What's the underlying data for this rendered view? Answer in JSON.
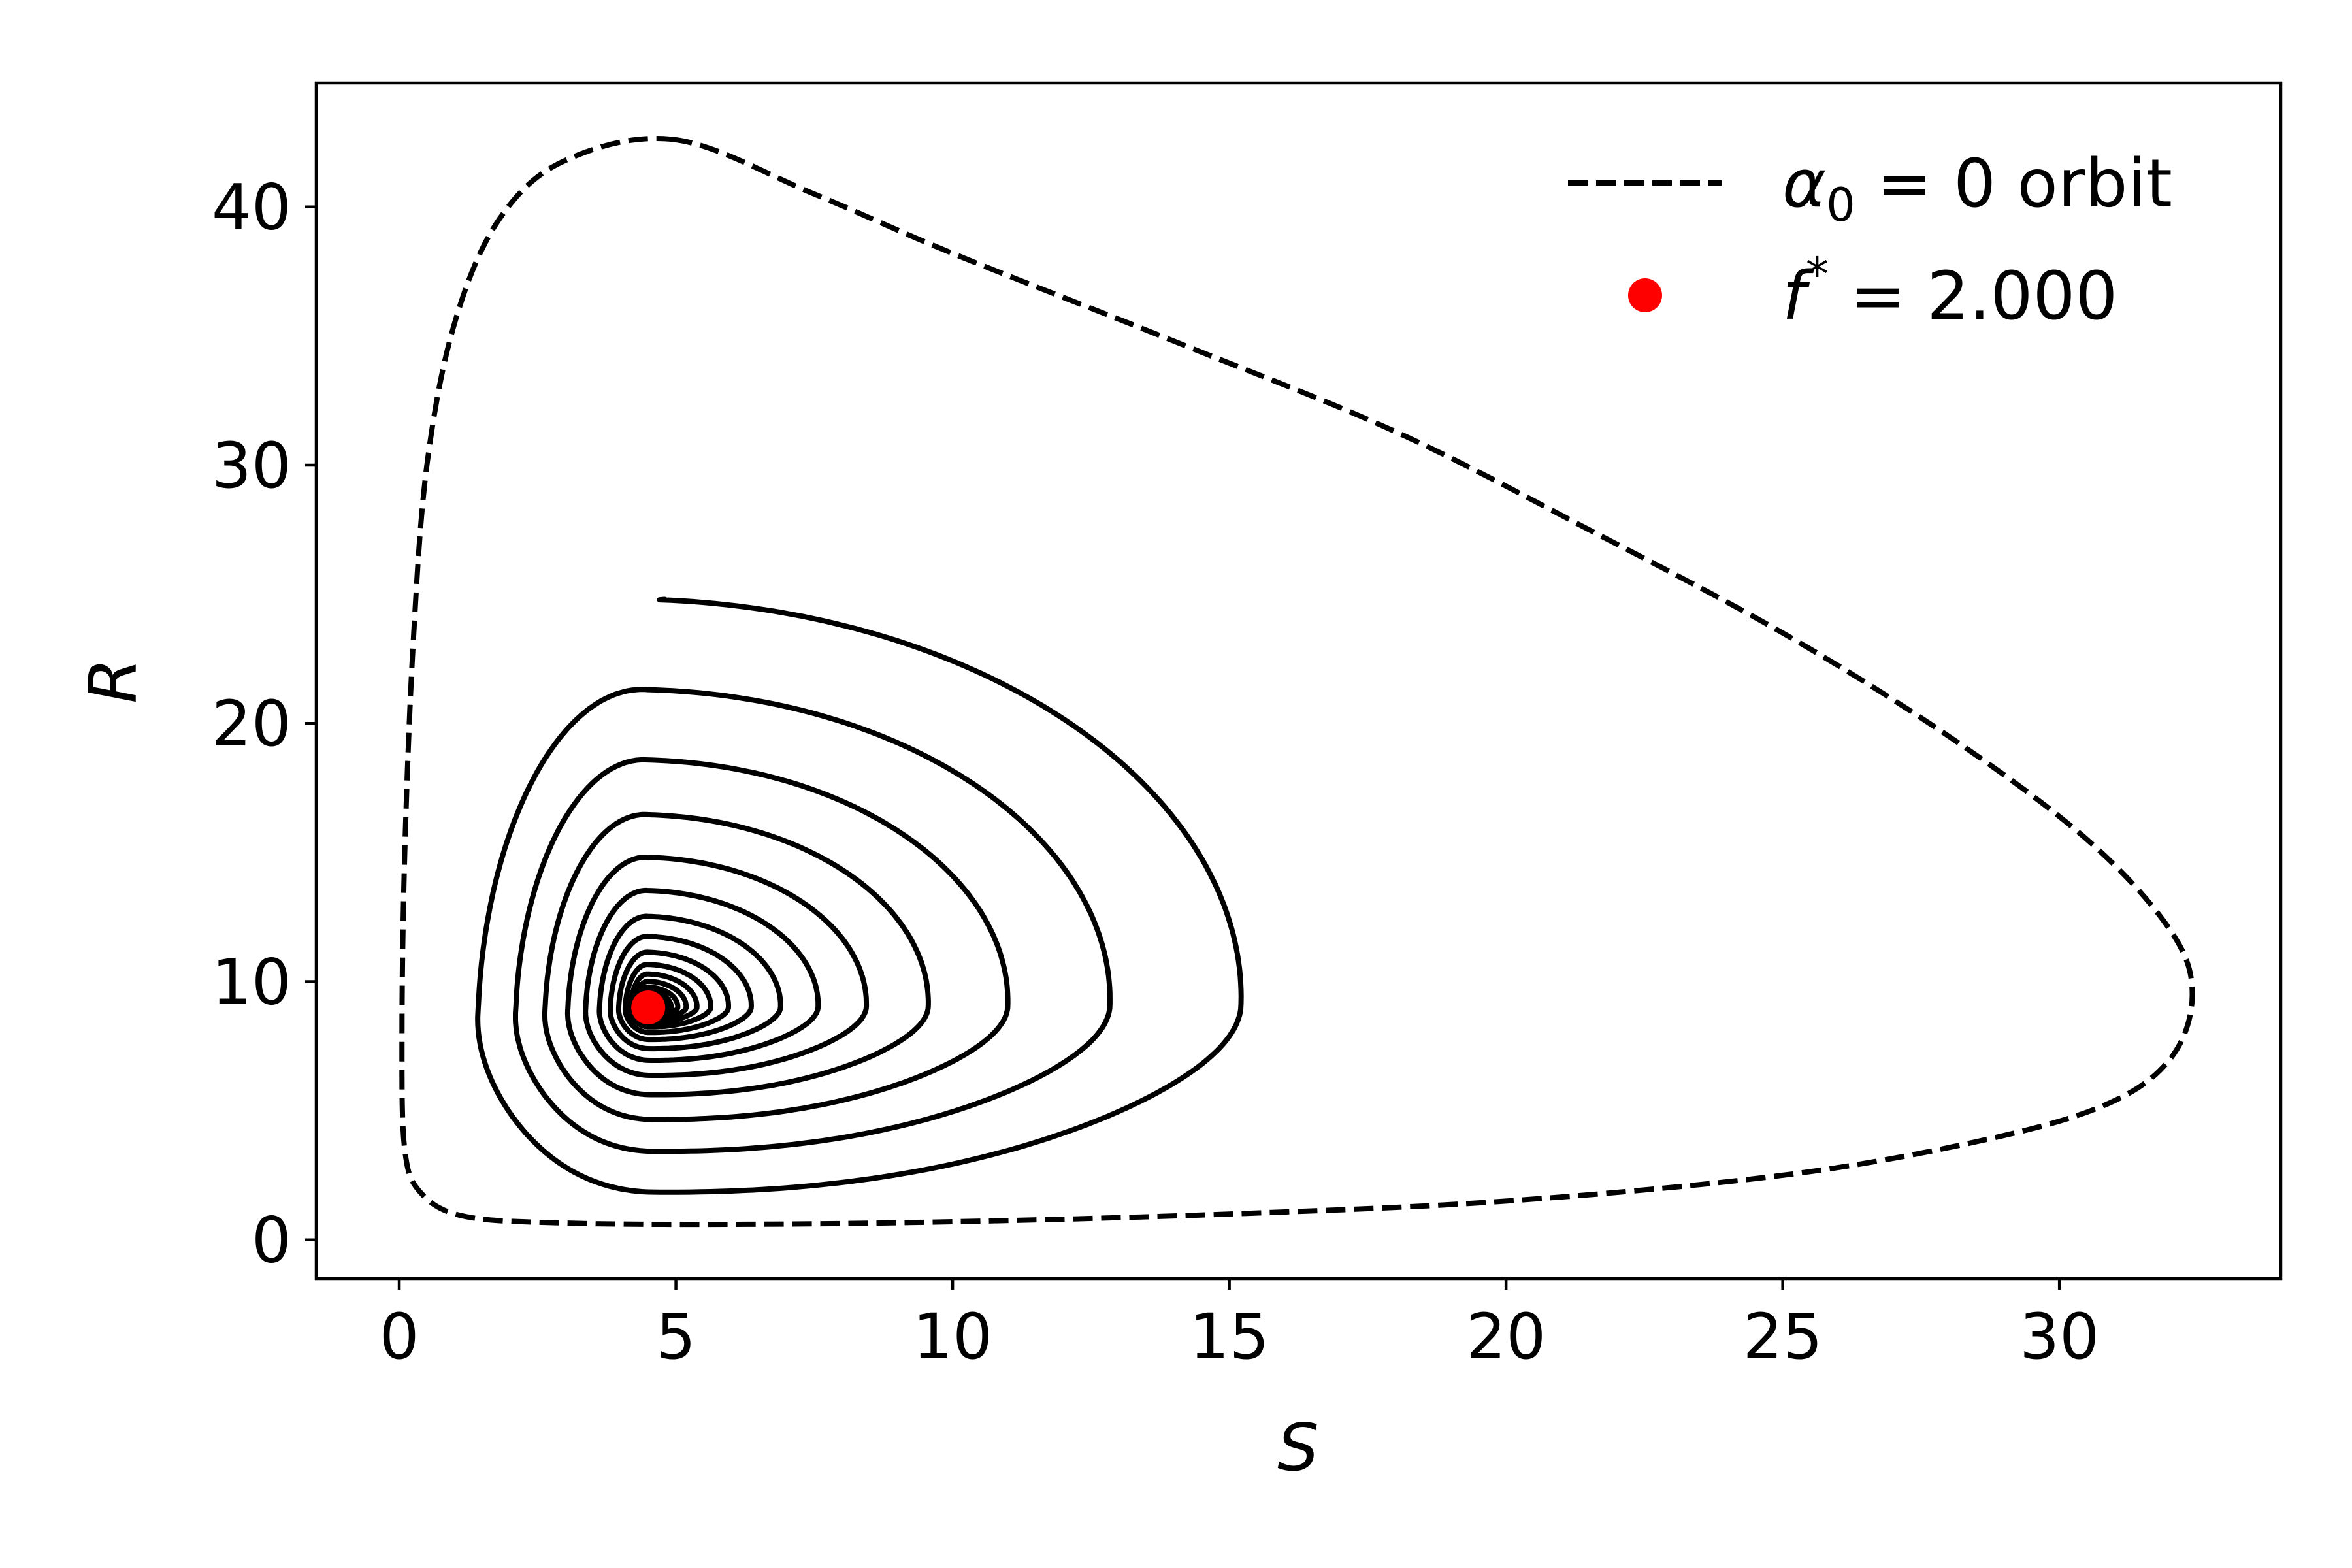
{
  "chart_data": {
    "type": "line",
    "title": "",
    "xlabel": "S",
    "ylabel": "R",
    "xlim": [
      -1.5,
      34.0
    ],
    "ylim": [
      -1.5,
      44.8
    ],
    "x_ticks": [
      0,
      5,
      10,
      15,
      20,
      25,
      30
    ],
    "y_ticks": [
      0,
      10,
      20,
      30,
      40
    ],
    "x_tick_labels": [
      "0",
      "5",
      "10",
      "15",
      "20",
      "25",
      "30"
    ],
    "y_tick_labels": [
      "0",
      "10",
      "20",
      "30",
      "40"
    ],
    "grid": false,
    "legend_position": "top-right",
    "colors": {
      "orbit": "#000000",
      "trajectory": "#000000",
      "fixed_point": "#ff0000"
    },
    "orbit": {
      "label_symbol": "α",
      "label_subscript": "0",
      "label_rest": " = 0 orbit",
      "style": "dashed",
      "points": [
        [
          5.0,
          42.6
        ],
        [
          3.0,
          41.8
        ],
        [
          1.8,
          39.5
        ],
        [
          1.0,
          35.5
        ],
        [
          0.5,
          30.0
        ],
        [
          0.25,
          23.0
        ],
        [
          0.1,
          15.0
        ],
        [
          0.05,
          8.0
        ],
        [
          0.1,
          3.5
        ],
        [
          0.4,
          1.8
        ],
        [
          1.2,
          0.9
        ],
        [
          3.0,
          0.65
        ],
        [
          6.0,
          0.6
        ],
        [
          10.0,
          0.7
        ],
        [
          15.0,
          1.0
        ],
        [
          20.0,
          1.5
        ],
        [
          25.0,
          2.5
        ],
        [
          28.5,
          3.8
        ],
        [
          30.8,
          5.2
        ],
        [
          32.0,
          7.0
        ],
        [
          32.4,
          9.5
        ],
        [
          32.0,
          12.0
        ],
        [
          30.5,
          15.5
        ],
        [
          28.0,
          19.5
        ],
        [
          25.0,
          23.5
        ],
        [
          21.5,
          27.5
        ],
        [
          18.0,
          31.3
        ],
        [
          14.0,
          34.8
        ],
        [
          10.0,
          38.2
        ],
        [
          7.5,
          40.5
        ],
        [
          5.0,
          42.6
        ]
      ]
    },
    "trajectory": {
      "style": "solid",
      "center": [
        4.5,
        9.0
      ],
      "start": [
        4.8,
        24.8
      ],
      "turns": 26,
      "decay": 0.25,
      "r_shape": {
        "offset": 0.43,
        "amplitude": 0.57,
        "exponent": 2.1
      }
    },
    "fixed_point": {
      "x": 4.5,
      "y": 9.0,
      "label_symbol": "f",
      "label_superscript": "*",
      "label_rest": " = 2.000"
    }
  }
}
